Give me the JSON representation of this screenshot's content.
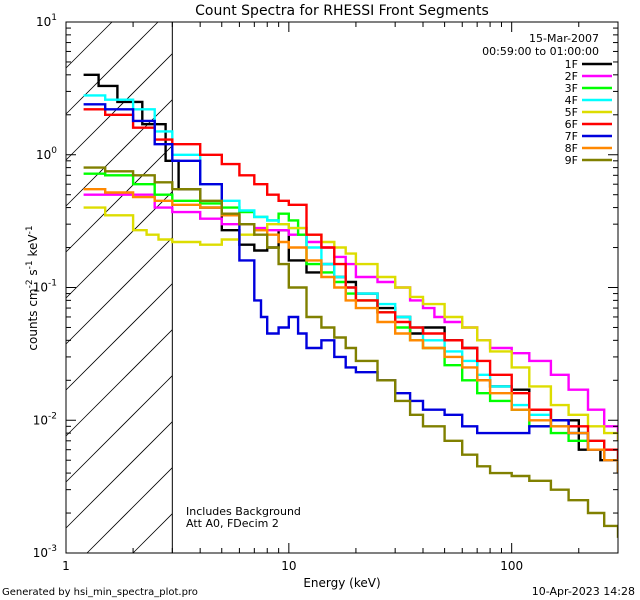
{
  "chart_data": {
    "type": "line",
    "title": "Count Spectra for RHESSI Front Segments",
    "xlabel": "Energy (keV)",
    "ylabel_parts": [
      "counts cm",
      "-2",
      " s",
      "-1",
      " keV",
      "-1"
    ],
    "xscale": "log",
    "yscale": "log",
    "xlim": [
      1,
      300
    ],
    "ylim": [
      0.001,
      10
    ],
    "x_ticks": [
      {
        "value": 1,
        "label": "1"
      },
      {
        "value": 10,
        "label": "10"
      },
      {
        "value": 100,
        "label": "100"
      }
    ],
    "y_ticks": [
      {
        "value": 0.001,
        "base": "10",
        "exp": "-3"
      },
      {
        "value": 0.01,
        "base": "10",
        "exp": "-2"
      },
      {
        "value": 0.1,
        "base": "10",
        "exp": "-1"
      },
      {
        "value": 1,
        "base": "10",
        "exp": "0"
      },
      {
        "value": 10,
        "base": "10",
        "exp": "1"
      }
    ],
    "date": "15-Mar-2007",
    "time_range": "00:59:00 to 01:00:00",
    "annotation_lines": [
      "Includes Background",
      "Att A0, FDecim 2"
    ],
    "shaded_region_xmax": 3,
    "series": [
      {
        "name": "1F",
        "color": "#000000",
        "points": [
          [
            1.2,
            4.0
          ],
          [
            1.4,
            3.3
          ],
          [
            1.7,
            2.5
          ],
          [
            2.2,
            1.7
          ],
          [
            2.8,
            0.9
          ],
          [
            3.2,
            0.55
          ],
          [
            4,
            0.4
          ],
          [
            5,
            0.27
          ],
          [
            6,
            0.21
          ],
          [
            7,
            0.19
          ],
          [
            8,
            0.2
          ],
          [
            9,
            0.27
          ],
          [
            10,
            0.16
          ],
          [
            12,
            0.13
          ],
          [
            14,
            0.15
          ],
          [
            16,
            0.12
          ],
          [
            18,
            0.11
          ],
          [
            20,
            0.09
          ],
          [
            25,
            0.07
          ],
          [
            30,
            0.06
          ],
          [
            35,
            0.045
          ],
          [
            40,
            0.05
          ],
          [
            50,
            0.04
          ],
          [
            60,
            0.035
          ],
          [
            70,
            0.02
          ],
          [
            80,
            0.018
          ],
          [
            100,
            0.017
          ],
          [
            120,
            0.012
          ],
          [
            150,
            0.01
          ],
          [
            200,
            0.006
          ],
          [
            250,
            0.005
          ],
          [
            300,
            0.004
          ]
        ]
      },
      {
        "name": "2F",
        "color": "#ff00ff",
        "points": [
          [
            1.2,
            0.5
          ],
          [
            1.5,
            0.5
          ],
          [
            2,
            0.5
          ],
          [
            2.5,
            0.4
          ],
          [
            3,
            0.37
          ],
          [
            4,
            0.33
          ],
          [
            5,
            0.3
          ],
          [
            6,
            0.3
          ],
          [
            7,
            0.28
          ],
          [
            8,
            0.27
          ],
          [
            10,
            0.25
          ],
          [
            12,
            0.22
          ],
          [
            14,
            0.2
          ],
          [
            16,
            0.17
          ],
          [
            18,
            0.15
          ],
          [
            20,
            0.12
          ],
          [
            25,
            0.11
          ],
          [
            30,
            0.1
          ],
          [
            35,
            0.08
          ],
          [
            40,
            0.07
          ],
          [
            45,
            0.06
          ],
          [
            50,
            0.055
          ],
          [
            60,
            0.05
          ],
          [
            70,
            0.04
          ],
          [
            80,
            0.035
          ],
          [
            100,
            0.032
          ],
          [
            120,
            0.028
          ],
          [
            150,
            0.022
          ],
          [
            180,
            0.017
          ],
          [
            220,
            0.012
          ],
          [
            260,
            0.009
          ],
          [
            300,
            0.007
          ]
        ]
      },
      {
        "name": "3F",
        "color": "#00ff00",
        "points": [
          [
            1.2,
            0.72
          ],
          [
            1.5,
            0.7
          ],
          [
            2,
            0.6
          ],
          [
            2.5,
            0.5
          ],
          [
            3,
            0.45
          ],
          [
            4,
            0.43
          ],
          [
            5,
            0.4
          ],
          [
            6,
            0.37
          ],
          [
            7,
            0.34
          ],
          [
            8,
            0.32
          ],
          [
            9,
            0.36
          ],
          [
            10,
            0.32
          ],
          [
            11,
            0.25
          ],
          [
            12,
            0.15
          ],
          [
            14,
            0.13
          ],
          [
            16,
            0.11
          ],
          [
            18,
            0.09
          ],
          [
            20,
            0.08
          ],
          [
            25,
            0.065
          ],
          [
            30,
            0.05
          ],
          [
            35,
            0.04
          ],
          [
            40,
            0.035
          ],
          [
            50,
            0.026
          ],
          [
            60,
            0.02
          ],
          [
            70,
            0.016
          ],
          [
            80,
            0.014
          ],
          [
            100,
            0.012
          ],
          [
            120,
            0.009
          ],
          [
            150,
            0.008
          ],
          [
            180,
            0.007
          ],
          [
            220,
            0.006
          ],
          [
            260,
            0.005
          ],
          [
            300,
            0.004
          ]
        ]
      },
      {
        "name": "4F",
        "color": "#00ffff",
        "points": [
          [
            1.2,
            2.8
          ],
          [
            1.5,
            2.6
          ],
          [
            2,
            2.2
          ],
          [
            2.5,
            1.5
          ],
          [
            3,
            1.0
          ],
          [
            4,
            0.6
          ],
          [
            5,
            0.45
          ],
          [
            6,
            0.38
          ],
          [
            7,
            0.34
          ],
          [
            8,
            0.32
          ],
          [
            9,
            0.3
          ],
          [
            10,
            0.28
          ],
          [
            12,
            0.2
          ],
          [
            14,
            0.15
          ],
          [
            16,
            0.12
          ],
          [
            18,
            0.1
          ],
          [
            20,
            0.09
          ],
          [
            25,
            0.075
          ],
          [
            30,
            0.06
          ],
          [
            35,
            0.05
          ],
          [
            40,
            0.04
          ],
          [
            50,
            0.033
          ],
          [
            60,
            0.028
          ],
          [
            70,
            0.022
          ],
          [
            80,
            0.018
          ],
          [
            100,
            0.013
          ],
          [
            120,
            0.011
          ],
          [
            150,
            0.009
          ],
          [
            180,
            0.008
          ],
          [
            220,
            0.007
          ],
          [
            260,
            0.006
          ],
          [
            300,
            0.005
          ]
        ]
      },
      {
        "name": "5F",
        "color": "#dddd00",
        "points": [
          [
            1.2,
            0.4
          ],
          [
            1.5,
            0.35
          ],
          [
            2,
            0.27
          ],
          [
            2.3,
            0.25
          ],
          [
            2.6,
            0.23
          ],
          [
            3,
            0.22
          ],
          [
            4,
            0.21
          ],
          [
            5,
            0.23
          ],
          [
            6,
            0.25
          ],
          [
            7,
            0.27
          ],
          [
            8,
            0.3
          ],
          [
            9,
            0.3
          ],
          [
            10,
            0.28
          ],
          [
            12,
            0.25
          ],
          [
            14,
            0.22
          ],
          [
            16,
            0.2
          ],
          [
            18,
            0.18
          ],
          [
            20,
            0.15
          ],
          [
            25,
            0.12
          ],
          [
            30,
            0.1
          ],
          [
            35,
            0.085
          ],
          [
            40,
            0.075
          ],
          [
            50,
            0.06
          ],
          [
            60,
            0.05
          ],
          [
            70,
            0.04
          ],
          [
            80,
            0.033
          ],
          [
            100,
            0.025
          ],
          [
            120,
            0.018
          ],
          [
            150,
            0.013
          ],
          [
            180,
            0.011
          ],
          [
            220,
            0.009
          ],
          [
            260,
            0.008
          ],
          [
            300,
            0.007
          ]
        ]
      },
      {
        "name": "6F",
        "color": "#ff0000",
        "points": [
          [
            1.2,
            2.2
          ],
          [
            1.5,
            2.0
          ],
          [
            2,
            1.6
          ],
          [
            2.5,
            1.3
          ],
          [
            3,
            1.2
          ],
          [
            4,
            1.0
          ],
          [
            5,
            0.85
          ],
          [
            6,
            0.7
          ],
          [
            7,
            0.6
          ],
          [
            8,
            0.5
          ],
          [
            9,
            0.45
          ],
          [
            10,
            0.42
          ],
          [
            12,
            0.25
          ],
          [
            14,
            0.2
          ],
          [
            16,
            0.15
          ],
          [
            18,
            0.1
          ],
          [
            20,
            0.08
          ],
          [
            25,
            0.065
          ],
          [
            30,
            0.055
          ],
          [
            35,
            0.05
          ],
          [
            40,
            0.045
          ],
          [
            50,
            0.04
          ],
          [
            60,
            0.035
          ],
          [
            70,
            0.028
          ],
          [
            80,
            0.022
          ],
          [
            100,
            0.016
          ],
          [
            120,
            0.012
          ],
          [
            150,
            0.01
          ],
          [
            180,
            0.009
          ],
          [
            220,
            0.007
          ],
          [
            260,
            0.006
          ],
          [
            300,
            0.005
          ]
        ]
      },
      {
        "name": "7F",
        "color": "#0000dd",
        "points": [
          [
            1.2,
            2.4
          ],
          [
            1.5,
            2.2
          ],
          [
            2,
            1.8
          ],
          [
            2.5,
            1.2
          ],
          [
            3,
            0.9
          ],
          [
            4,
            0.6
          ],
          [
            5,
            0.35
          ],
          [
            6,
            0.16
          ],
          [
            7,
            0.08
          ],
          [
            7.5,
            0.06
          ],
          [
            8,
            0.045
          ],
          [
            9,
            0.05
          ],
          [
            10,
            0.06
          ],
          [
            11,
            0.045
          ],
          [
            12,
            0.035
          ],
          [
            14,
            0.04
          ],
          [
            16,
            0.03
          ],
          [
            18,
            0.025
          ],
          [
            20,
            0.023
          ],
          [
            25,
            0.02
          ],
          [
            30,
            0.016
          ],
          [
            35,
            0.014
          ],
          [
            40,
            0.012
          ],
          [
            50,
            0.011
          ],
          [
            60,
            0.009
          ],
          [
            70,
            0.008
          ],
          [
            80,
            0.008
          ],
          [
            100,
            0.008
          ],
          [
            120,
            0.009
          ],
          [
            150,
            0.01
          ],
          [
            180,
            0.008
          ],
          [
            220,
            0.006
          ],
          [
            260,
            0.005
          ],
          [
            300,
            0.004
          ]
        ]
      },
      {
        "name": "8F",
        "color": "#ff8800",
        "points": [
          [
            1.2,
            0.55
          ],
          [
            1.5,
            0.52
          ],
          [
            2,
            0.48
          ],
          [
            2.5,
            0.45
          ],
          [
            3,
            0.42
          ],
          [
            4,
            0.4
          ],
          [
            5,
            0.35
          ],
          [
            6,
            0.3
          ],
          [
            7,
            0.27
          ],
          [
            8,
            0.25
          ],
          [
            9,
            0.22
          ],
          [
            10,
            0.2
          ],
          [
            12,
            0.16
          ],
          [
            14,
            0.12
          ],
          [
            16,
            0.1
          ],
          [
            18,
            0.08
          ],
          [
            20,
            0.07
          ],
          [
            25,
            0.055
          ],
          [
            30,
            0.045
          ],
          [
            35,
            0.04
          ],
          [
            40,
            0.035
          ],
          [
            50,
            0.03
          ],
          [
            60,
            0.025
          ],
          [
            70,
            0.02
          ],
          [
            80,
            0.016
          ],
          [
            100,
            0.012
          ],
          [
            120,
            0.01
          ],
          [
            150,
            0.009
          ],
          [
            180,
            0.008
          ],
          [
            220,
            0.006
          ],
          [
            260,
            0.005
          ],
          [
            300,
            0.004
          ]
        ]
      },
      {
        "name": "9F",
        "color": "#808000",
        "points": [
          [
            1.2,
            0.8
          ],
          [
            1.5,
            0.75
          ],
          [
            2,
            0.7
          ],
          [
            2.5,
            0.62
          ],
          [
            3,
            0.55
          ],
          [
            4,
            0.45
          ],
          [
            5,
            0.36
          ],
          [
            6,
            0.3
          ],
          [
            7,
            0.25
          ],
          [
            8,
            0.2
          ],
          [
            9,
            0.15
          ],
          [
            10,
            0.1
          ],
          [
            12,
            0.06
          ],
          [
            14,
            0.05
          ],
          [
            16,
            0.042
          ],
          [
            18,
            0.035
          ],
          [
            20,
            0.028
          ],
          [
            25,
            0.02
          ],
          [
            30,
            0.014
          ],
          [
            35,
            0.011
          ],
          [
            40,
            0.009
          ],
          [
            50,
            0.007
          ],
          [
            60,
            0.0055
          ],
          [
            70,
            0.0045
          ],
          [
            80,
            0.004
          ],
          [
            100,
            0.0038
          ],
          [
            120,
            0.0035
          ],
          [
            150,
            0.003
          ],
          [
            180,
            0.0025
          ],
          [
            220,
            0.002
          ],
          [
            260,
            0.0016
          ],
          [
            300,
            0.0013
          ]
        ]
      }
    ]
  },
  "footer": {
    "generated_by": "Generated by hsi_min_spectra_plot.pro",
    "timestamp": "10-Apr-2023 14:28"
  }
}
